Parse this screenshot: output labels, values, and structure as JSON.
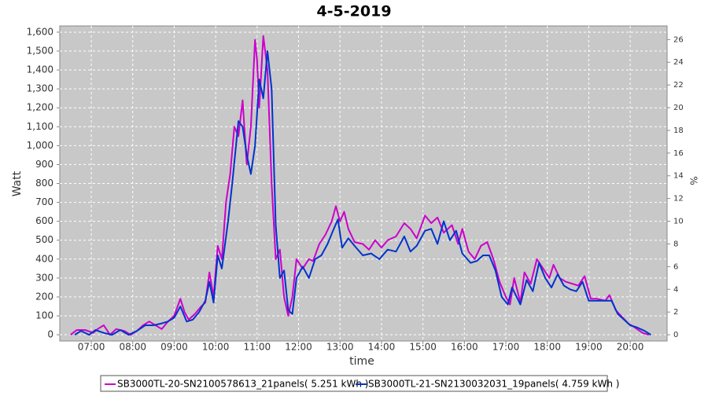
{
  "chart_data": {
    "type": "line",
    "title": "4-5-2019",
    "x_label": "time",
    "y_label": "Watt",
    "y2_label": "%",
    "xlim": [
      6.24,
      20.89
    ],
    "xticks": [
      {
        "value": 7,
        "label": "07:00"
      },
      {
        "value": 8,
        "label": "08:00"
      },
      {
        "value": 9,
        "label": "09:00"
      },
      {
        "value": 10,
        "label": "10:00"
      },
      {
        "value": 11,
        "label": "11:00"
      },
      {
        "value": 12,
        "label": "12:00"
      },
      {
        "value": 13,
        "label": "13:00"
      },
      {
        "value": 14,
        "label": "14:00"
      },
      {
        "value": 15,
        "label": "15:00"
      },
      {
        "value": 16,
        "label": "16:00"
      },
      {
        "value": 17,
        "label": "17:00"
      },
      {
        "value": 18,
        "label": "18:00"
      },
      {
        "value": 19,
        "label": "19:00"
      },
      {
        "value": 20,
        "label": "20:00"
      }
    ],
    "ylim": [
      -33,
      1633
    ],
    "yticks": [
      0,
      100,
      200,
      300,
      400,
      500,
      600,
      700,
      800,
      900,
      {
        "value": 1000,
        "label": "1,000"
      },
      {
        "value": 1100,
        "label": "1,100"
      },
      {
        "value": 1200,
        "label": "1,200"
      },
      {
        "value": 1300,
        "label": "1,300"
      },
      {
        "value": 1400,
        "label": "1,400"
      },
      {
        "value": 1500,
        "label": "1,500"
      },
      {
        "value": 1600,
        "label": "1,600"
      }
    ],
    "y2lim": [
      -0.55,
      27.2
    ],
    "y2ticks": [
      0,
      2,
      4,
      6,
      8,
      10,
      12,
      14,
      16,
      18,
      20,
      22,
      24,
      26
    ],
    "grid": true,
    "legend": "bottom",
    "series": [
      {
        "name": "SB3000TL-20-SN2100578613_21panels( 5.251 kWh )",
        "color": "#cc00cc",
        "x": [
          6.5,
          6.65,
          6.85,
          7.05,
          7.15,
          7.3,
          7.45,
          7.6,
          7.8,
          7.95,
          8.1,
          8.25,
          8.4,
          8.55,
          8.7,
          8.85,
          9.0,
          9.15,
          9.25,
          9.35,
          9.5,
          9.65,
          9.75,
          9.85,
          9.95,
          10.05,
          10.15,
          10.25,
          10.35,
          10.45,
          10.55,
          10.65,
          10.75,
          10.85,
          10.95,
          11.0,
          11.05,
          11.15,
          11.25,
          11.35,
          11.45,
          11.55,
          11.65,
          11.75,
          11.85,
          11.95,
          12.1,
          12.25,
          12.35,
          12.5,
          12.65,
          12.8,
          12.9,
          13.0,
          13.1,
          13.2,
          13.35,
          13.55,
          13.7,
          13.85,
          14.0,
          14.15,
          14.35,
          14.55,
          14.7,
          14.85,
          15.05,
          15.2,
          15.35,
          15.5,
          15.7,
          15.85,
          15.95,
          16.1,
          16.25,
          16.4,
          16.55,
          16.7,
          16.85,
          17.0,
          17.1,
          17.2,
          17.35,
          17.45,
          17.6,
          17.75,
          17.9,
          18.05,
          18.15,
          18.3,
          18.45,
          18.6,
          18.75,
          18.9,
          19.05,
          19.2,
          19.4,
          19.5,
          19.65,
          19.8,
          19.95,
          20.1,
          20.3,
          20.45
        ],
        "values": [
          0,
          25,
          25,
          10,
          30,
          50,
          0,
          30,
          20,
          0,
          20,
          50,
          70,
          50,
          30,
          70,
          100,
          190,
          120,
          80,
          110,
          150,
          170,
          330,
          200,
          470,
          400,
          700,
          850,
          1100,
          1050,
          1240,
          900,
          1100,
          1560,
          1450,
          1200,
          1580,
          1400,
          800,
          400,
          450,
          200,
          100,
          200,
          400,
          350,
          400,
          390,
          480,
          530,
          600,
          680,
          600,
          650,
          560,
          490,
          480,
          450,
          500,
          460,
          500,
          520,
          590,
          560,
          510,
          630,
          590,
          620,
          540,
          580,
          480,
          560,
          440,
          400,
          470,
          490,
          400,
          280,
          200,
          160,
          300,
          170,
          330,
          270,
          400,
          350,
          300,
          370,
          300,
          280,
          270,
          260,
          310,
          190,
          190,
          180,
          210,
          130,
          95,
          60,
          40,
          10,
          0
        ]
      },
      {
        "name": "SB3000TL-21-SN2130032031_19panels( 4.759 kWh )",
        "color": "#0033cc",
        "x": [
          6.6,
          6.75,
          6.95,
          7.1,
          7.3,
          7.5,
          7.7,
          7.9,
          8.1,
          8.3,
          8.5,
          8.7,
          8.85,
          9.0,
          9.15,
          9.3,
          9.45,
          9.6,
          9.75,
          9.85,
          9.95,
          10.05,
          10.15,
          10.3,
          10.4,
          10.55,
          10.65,
          10.75,
          10.85,
          10.95,
          11.05,
          11.15,
          11.25,
          11.35,
          11.45,
          11.55,
          11.65,
          11.75,
          11.85,
          11.95,
          12.1,
          12.25,
          12.4,
          12.55,
          12.7,
          12.85,
          12.95,
          13.05,
          13.2,
          13.35,
          13.55,
          13.75,
          13.95,
          14.15,
          14.35,
          14.55,
          14.7,
          14.85,
          15.05,
          15.2,
          15.35,
          15.5,
          15.65,
          15.8,
          15.95,
          16.15,
          16.3,
          16.45,
          16.6,
          16.75,
          16.9,
          17.05,
          17.15,
          17.35,
          17.5,
          17.65,
          17.8,
          17.95,
          18.1,
          18.25,
          18.4,
          18.55,
          18.7,
          18.85,
          19.0,
          19.2,
          19.4,
          19.55,
          19.7,
          19.85,
          20.0,
          20.15,
          20.35,
          20.5
        ],
        "values": [
          0,
          20,
          0,
          25,
          10,
          0,
          25,
          0,
          20,
          50,
          50,
          60,
          70,
          90,
          150,
          70,
          80,
          120,
          180,
          280,
          170,
          420,
          350,
          600,
          800,
          1130,
          1100,
          950,
          850,
          1000,
          1350,
          1250,
          1500,
          1300,
          580,
          300,
          340,
          130,
          110,
          300,
          360,
          300,
          400,
          420,
          480,
          560,
          610,
          460,
          510,
          470,
          420,
          430,
          400,
          450,
          440,
          520,
          440,
          470,
          550,
          560,
          480,
          600,
          500,
          550,
          430,
          380,
          390,
          420,
          420,
          340,
          200,
          160,
          250,
          160,
          290,
          230,
          380,
          300,
          250,
          320,
          260,
          240,
          230,
          280,
          180,
          180,
          180,
          180,
          110,
          80,
          50,
          40,
          20,
          0
        ]
      }
    ]
  }
}
